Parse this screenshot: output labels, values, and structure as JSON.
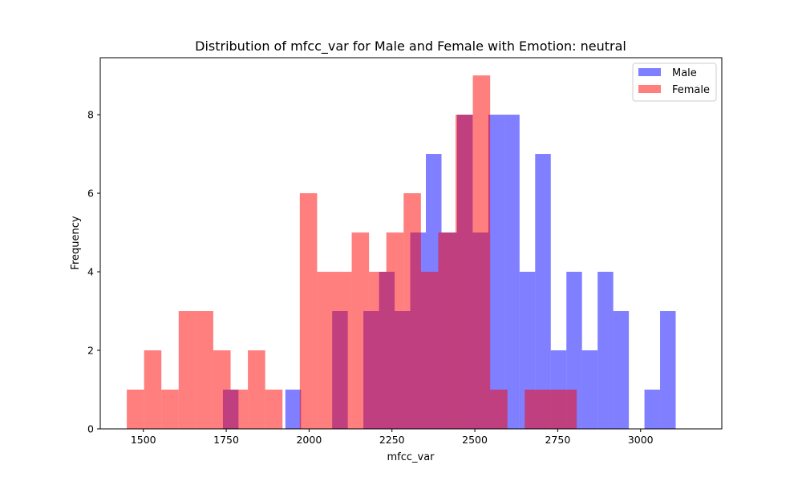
{
  "chart_data": {
    "type": "bar",
    "title": "Distribution of mfcc_var for Male and Female with Emotion: neutral",
    "xlabel": "mfcc_var",
    "ylabel": "Frequency",
    "xlim": [
      1370,
      3245
    ],
    "ylim": [
      0,
      9.45
    ],
    "xticks": [
      1500,
      1750,
      2000,
      2250,
      2500,
      2750,
      3000
    ],
    "yticks": [
      0,
      2,
      4,
      6,
      8
    ],
    "legend_position": "top-right",
    "grid": false,
    "series": [
      {
        "name": "Male",
        "color": "#0000ff",
        "opacity": 0.5,
        "bin_start": 1740,
        "bin_width": 47.1,
        "counts": [
          1,
          0,
          0,
          0,
          1,
          0,
          0,
          3,
          0,
          3,
          4,
          3,
          5,
          7,
          5,
          8,
          5,
          8,
          8,
          4,
          7,
          2,
          4,
          2,
          4,
          3,
          0,
          1,
          3
        ]
      },
      {
        "name": "Female",
        "color": "#ff0000",
        "opacity": 0.5,
        "bin_start": 1450,
        "bin_width": 52.2,
        "counts": [
          1,
          2,
          1,
          3,
          3,
          2,
          1,
          2,
          1,
          0,
          6,
          4,
          4,
          5,
          4,
          5,
          6,
          4,
          5,
          8,
          9,
          1,
          0,
          1,
          1,
          1
        ]
      }
    ]
  }
}
